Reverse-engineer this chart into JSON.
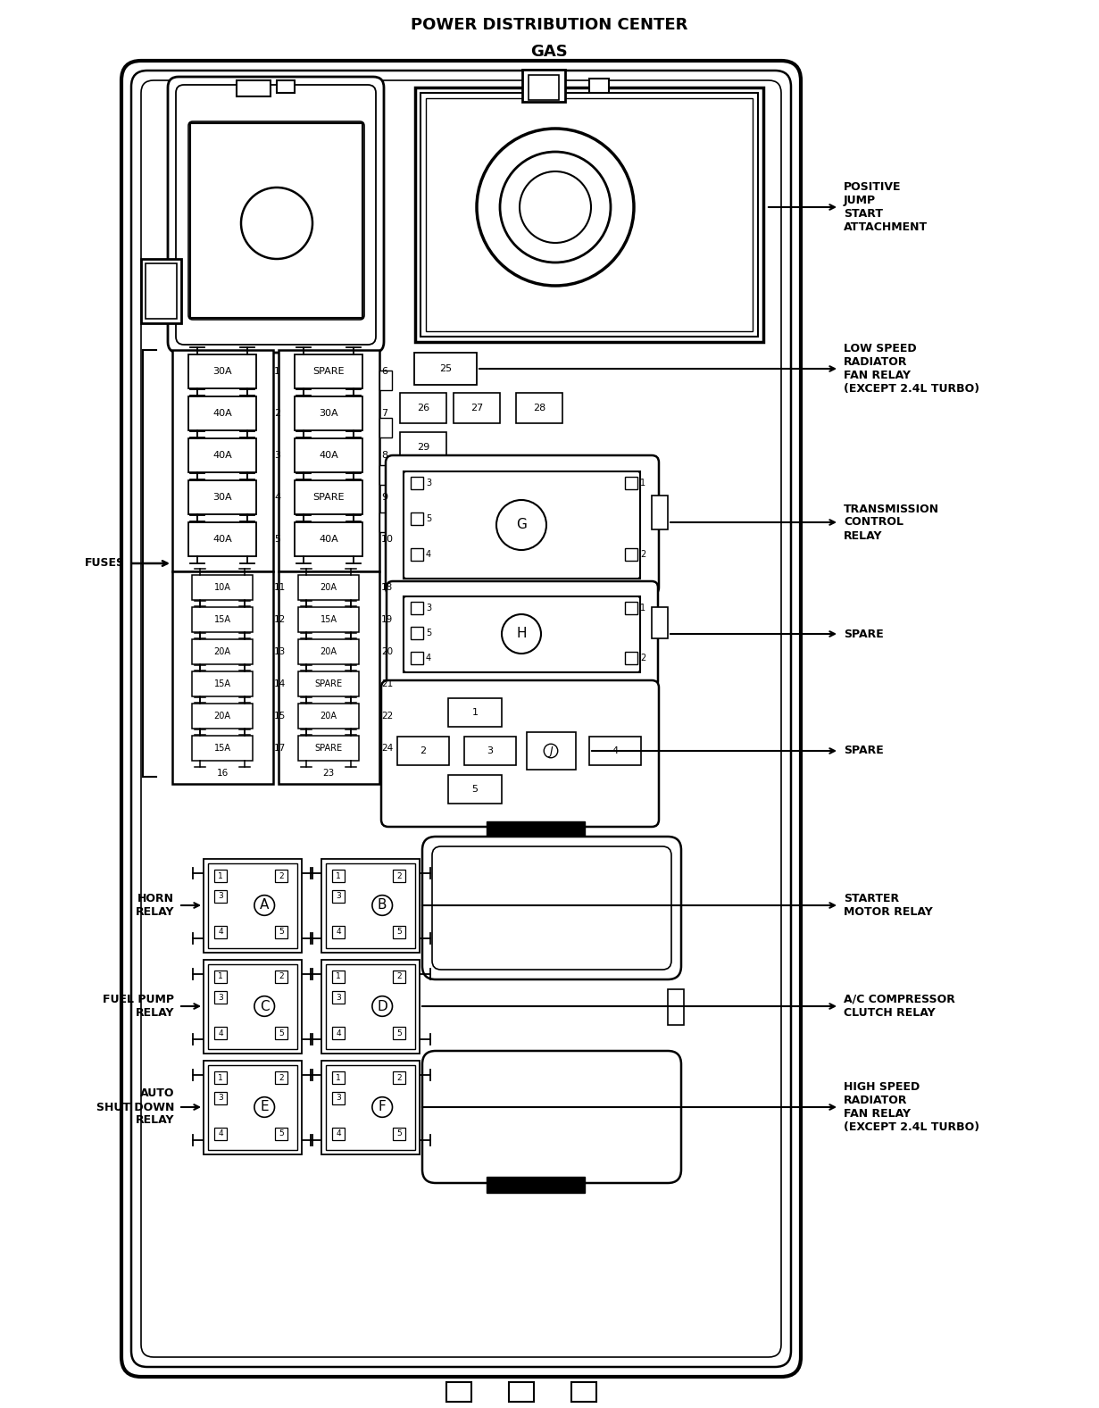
{
  "title_line1": "POWER DISTRIBUTION CENTER",
  "title_line2": "GAS",
  "bg_color": "#ffffff",
  "line_color": "#000000",
  "title_fontsize": 13,
  "label_fontsize": 9,
  "large_fuses_left": [
    [
      1,
      "30A"
    ],
    [
      2,
      "40A"
    ],
    [
      3,
      "40A"
    ],
    [
      4,
      "30A"
    ],
    [
      5,
      "40A"
    ]
  ],
  "large_fuses_right": [
    [
      6,
      "SPARE"
    ],
    [
      7,
      "30A"
    ],
    [
      8,
      "40A"
    ],
    [
      9,
      "SPARE"
    ],
    [
      10,
      "40A"
    ]
  ],
  "small_fuses_left": [
    [
      11,
      "10A"
    ],
    [
      12,
      "15A"
    ],
    [
      13,
      "20A"
    ],
    [
      14,
      "15A"
    ],
    [
      15,
      "20A"
    ],
    [
      17,
      "15A"
    ]
  ],
  "small_fuses_right": [
    [
      18,
      "20A"
    ],
    [
      19,
      "15A"
    ],
    [
      20,
      "20A"
    ],
    [
      21,
      "SPARE"
    ],
    [
      22,
      "20A"
    ],
    [
      24,
      "SPARE"
    ]
  ]
}
